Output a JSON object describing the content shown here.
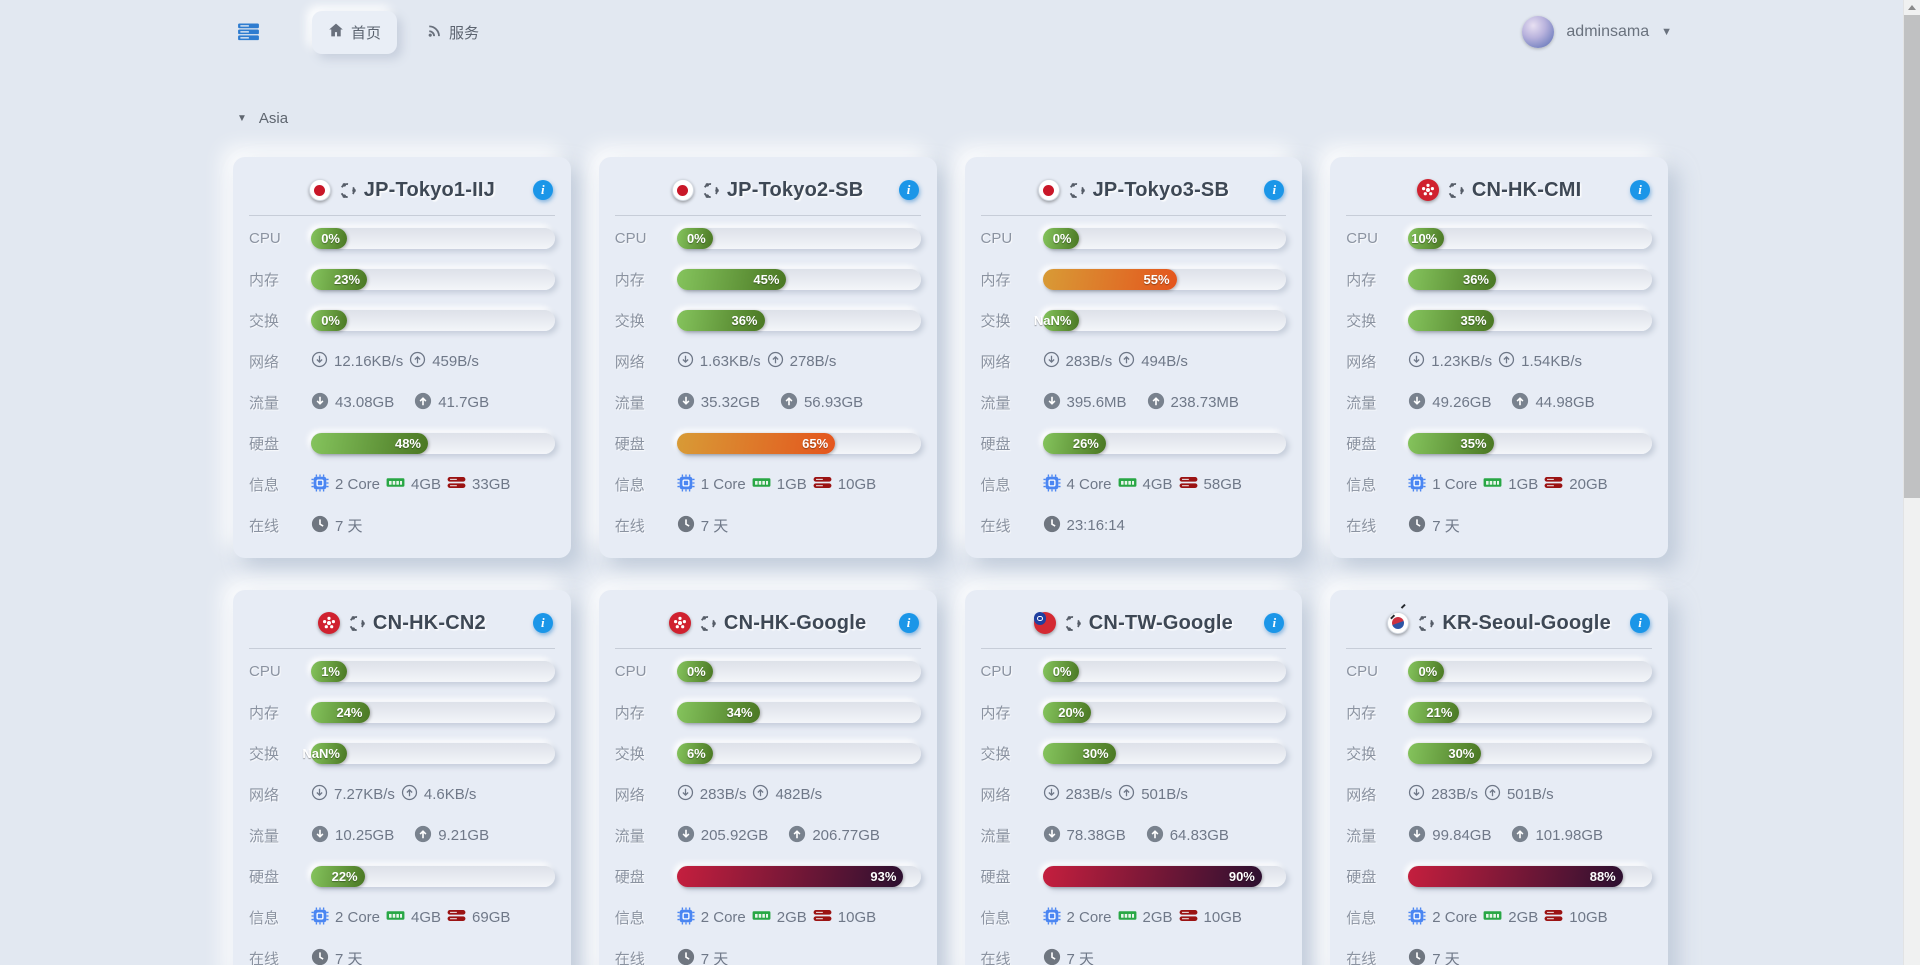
{
  "topbar": {
    "nav_home": "首页",
    "nav_services": "服务",
    "user_name": "adminsama"
  },
  "region": {
    "label": "Asia"
  },
  "labels": {
    "cpu": "CPU",
    "mem": "内存",
    "swap": "交换",
    "net": "网络",
    "traffic": "流量",
    "disk": "硬盘",
    "info": "信息",
    "online": "在线"
  },
  "colors": {
    "accent_blue": "#1b96e8",
    "bar_green": "#4a7723",
    "bar_orange": "#e4551d",
    "bar_red": "#c51f3e",
    "cpu_chip_blue": "#4b86f2",
    "ram_green": "#28a745",
    "disk_dark_red": "#9b1313"
  },
  "servers": [
    {
      "name": "JP-Tokyo1-IIJ",
      "flag": "jp",
      "cpu": {
        "text": "0%",
        "pct": 0
      },
      "mem": {
        "text": "23%",
        "pct": 23
      },
      "swap": {
        "text": "0%",
        "pct": 0
      },
      "net_down": "12.16KB/s",
      "net_up": "459B/s",
      "traf_down": "43.08GB",
      "traf_up": "41.7GB",
      "disk": {
        "text": "48%",
        "pct": 48
      },
      "cores": "2 Core",
      "ram": "4GB",
      "storage": "33GB",
      "uptime": "7 天"
    },
    {
      "name": "JP-Tokyo2-SB",
      "flag": "jp",
      "cpu": {
        "text": "0%",
        "pct": 0
      },
      "mem": {
        "text": "45%",
        "pct": 45
      },
      "swap": {
        "text": "36%",
        "pct": 36
      },
      "net_down": "1.63KB/s",
      "net_up": "278B/s",
      "traf_down": "35.32GB",
      "traf_up": "56.93GB",
      "disk": {
        "text": "65%",
        "pct": 65
      },
      "cores": "1 Core",
      "ram": "1GB",
      "storage": "10GB",
      "uptime": "7 天"
    },
    {
      "name": "JP-Tokyo3-SB",
      "flag": "jp",
      "cpu": {
        "text": "0%",
        "pct": 0
      },
      "mem": {
        "text": "55%",
        "pct": 55
      },
      "swap": {
        "text": "NaN%",
        "pct": 0
      },
      "net_down": "283B/s",
      "net_up": "494B/s",
      "traf_down": "395.6MB",
      "traf_up": "238.73MB",
      "disk": {
        "text": "26%",
        "pct": 26
      },
      "cores": "4 Core",
      "ram": "4GB",
      "storage": "58GB",
      "uptime": "23:16:14"
    },
    {
      "name": "CN-HK-CMI",
      "flag": "hk",
      "cpu": {
        "text": "10%",
        "pct": 10
      },
      "mem": {
        "text": "36%",
        "pct": 36
      },
      "swap": {
        "text": "35%",
        "pct": 35
      },
      "net_down": "1.23KB/s",
      "net_up": "1.54KB/s",
      "traf_down": "49.26GB",
      "traf_up": "44.98GB",
      "disk": {
        "text": "35%",
        "pct": 35
      },
      "cores": "1 Core",
      "ram": "1GB",
      "storage": "20GB",
      "uptime": "7 天"
    },
    {
      "name": "CN-HK-CN2",
      "flag": "hk",
      "cpu": {
        "text": "1%",
        "pct": 1
      },
      "mem": {
        "text": "24%",
        "pct": 24
      },
      "swap": {
        "text": "NaN%",
        "pct": 0
      },
      "net_down": "7.27KB/s",
      "net_up": "4.6KB/s",
      "traf_down": "10.25GB",
      "traf_up": "9.21GB",
      "disk": {
        "text": "22%",
        "pct": 22
      },
      "cores": "2 Core",
      "ram": "4GB",
      "storage": "69GB",
      "uptime": "7 天"
    },
    {
      "name": "CN-HK-Google",
      "flag": "hk",
      "cpu": {
        "text": "0%",
        "pct": 0
      },
      "mem": {
        "text": "34%",
        "pct": 34
      },
      "swap": {
        "text": "6%",
        "pct": 6
      },
      "net_down": "283B/s",
      "net_up": "482B/s",
      "traf_down": "205.92GB",
      "traf_up": "206.77GB",
      "disk": {
        "text": "93%",
        "pct": 93
      },
      "cores": "2 Core",
      "ram": "2GB",
      "storage": "10GB",
      "uptime": "7 天"
    },
    {
      "name": "CN-TW-Google",
      "flag": "tw",
      "cpu": {
        "text": "0%",
        "pct": 0
      },
      "mem": {
        "text": "20%",
        "pct": 20
      },
      "swap": {
        "text": "30%",
        "pct": 30
      },
      "net_down": "283B/s",
      "net_up": "501B/s",
      "traf_down": "78.38GB",
      "traf_up": "64.83GB",
      "disk": {
        "text": "90%",
        "pct": 90
      },
      "cores": "2 Core",
      "ram": "2GB",
      "storage": "10GB",
      "uptime": "7 天"
    },
    {
      "name": "KR-Seoul-Google",
      "flag": "kr",
      "cpu": {
        "text": "0%",
        "pct": 0
      },
      "mem": {
        "text": "21%",
        "pct": 21
      },
      "swap": {
        "text": "30%",
        "pct": 30
      },
      "net_down": "283B/s",
      "net_up": "501B/s",
      "traf_down": "99.84GB",
      "traf_up": "101.98GB",
      "disk": {
        "text": "88%",
        "pct": 88
      },
      "cores": "2 Core",
      "ram": "2GB",
      "storage": "10GB",
      "uptime": "7 天"
    }
  ]
}
